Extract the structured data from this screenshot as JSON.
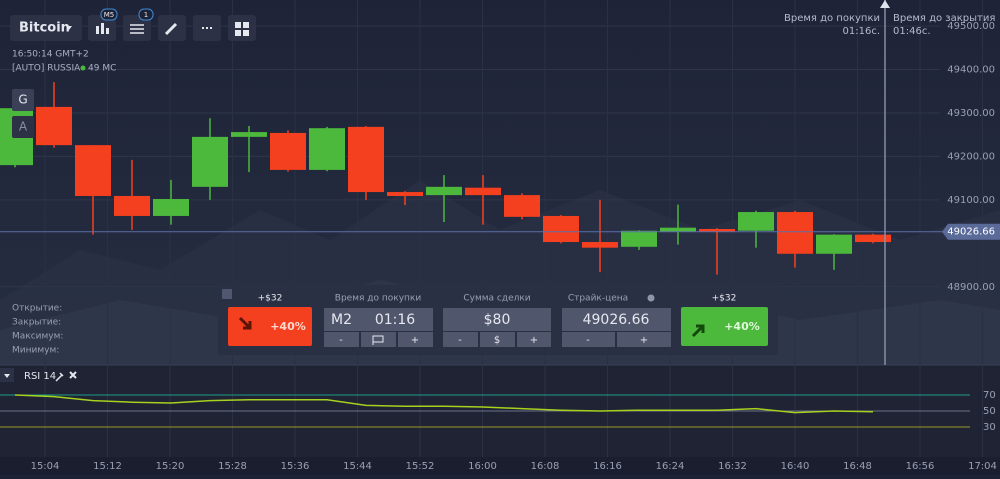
{
  "toolbar": {
    "asset": "Bitcoin",
    "timeframe_badge": "M5",
    "indicators_badge": "1"
  },
  "info": {
    "server_time": "16:50:14 GMT+2",
    "region": "[AUTO] RUSSIA",
    "ping": "49 МС"
  },
  "side_buttons": [
    "G",
    "A"
  ],
  "timers": {
    "buy_label": "Время до покупки",
    "buy_value": "01:16с.",
    "close_label": "Время до закрытия",
    "close_value": "01:46с."
  },
  "ohlc_labels": [
    "Открытие:",
    "Закрытие:",
    "Максимум:",
    "Минимум:"
  ],
  "trade_panel": {
    "put": {
      "payout": "+$32",
      "percent": "+40%"
    },
    "time": {
      "label": "Время до покупки",
      "frame": "M2",
      "value": "01:16",
      "minus": "-",
      "plus": "+"
    },
    "amount": {
      "label": "Сумма сделки",
      "value": "$80",
      "minus": "-",
      "currency": "$",
      "plus": "+"
    },
    "strike": {
      "label": "Страйк-цена",
      "value": "49026.66",
      "minus": "-",
      "plus": "+"
    },
    "call": {
      "payout": "+$32",
      "percent": "+40%"
    }
  },
  "chart_data": [
    {
      "type": "candlestick",
      "open": [
        49180,
        49314,
        49226,
        49109,
        49063,
        49130,
        49245,
        49254,
        49169,
        49268,
        49118,
        49111,
        49128,
        49111,
        49063,
        49003,
        48992,
        49026,
        49033,
        49029,
        49072,
        48976,
        49020
      ],
      "high": [
        49320,
        49371,
        49226,
        49192,
        49146,
        49288,
        49270,
        49260,
        49268,
        49270,
        49120,
        49157,
        49157,
        49115,
        49065,
        49100,
        49030,
        49089,
        49035,
        49075,
        49075,
        49021,
        49022
      ],
      "low": [
        49175,
        49220,
        49020,
        49031,
        49043,
        49100,
        49164,
        49165,
        49166,
        49100,
        49088,
        49049,
        49043,
        49055,
        49000,
        48934,
        48985,
        48997,
        48928,
        48990,
        48944,
        48939,
        49000
      ],
      "close": [
        49311,
        49226,
        49109,
        49063,
        49102,
        49245,
        49256,
        49169,
        49265,
        49118,
        49109,
        49130,
        49111,
        49061,
        49003,
        48990,
        49029,
        49036,
        49026,
        49072,
        48976,
        49020,
        49003
      ],
      "up_color": "#4cb83c",
      "down_color": "#f5401f",
      "ylim": [
        48720,
        49560
      ],
      "yticks": [
        {
          "value": 49500,
          "label": "49500.00"
        },
        {
          "value": 49400,
          "label": "49400.00"
        },
        {
          "value": 49300,
          "label": "49300.00"
        },
        {
          "value": 49200,
          "label": "49200.00"
        },
        {
          "value": 49100,
          "label": "49100.00"
        },
        {
          "value": 48900,
          "label": "48900.00"
        }
      ],
      "current_price": 49026.66,
      "time_labels": [
        "15:04",
        "15:12",
        "15:20",
        "15:28",
        "15:36",
        "15:44",
        "15:52",
        "16:00",
        "16:08",
        "16:16",
        "16:24",
        "16:32",
        "16:40",
        "16:48",
        "16:56",
        "17:04"
      ]
    },
    {
      "type": "line",
      "title": "RSI 14",
      "color": "#a6d11e",
      "values": [
        70,
        68,
        63,
        61,
        60,
        63,
        64,
        64,
        64,
        57,
        56,
        56,
        55,
        53,
        51,
        50,
        51,
        51,
        51,
        53,
        48,
        50,
        49
      ],
      "ylim": [
        0,
        100
      ],
      "yticks": [
        70,
        50,
        30
      ]
    }
  ]
}
